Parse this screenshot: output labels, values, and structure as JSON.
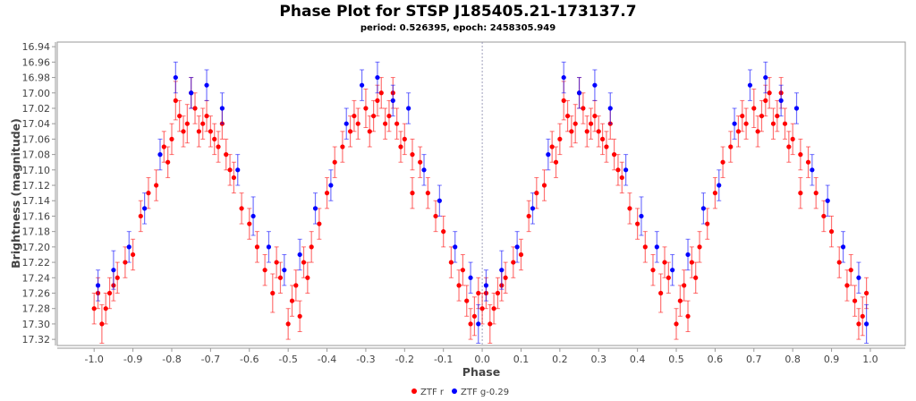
{
  "chart_data": {
    "type": "scatter",
    "title": "Phase Plot for STSP J185405.21-173137.7",
    "subtitle": "period: 0.526395, epoch: 2458305.949",
    "xlabel": "Phase",
    "ylabel": "Brightness (magnitude)",
    "xlim": [
      -1.095,
      1.09
    ],
    "ylim": [
      17.328,
      16.934
    ],
    "y_inverted": true,
    "x_ticks": [
      "-1.0",
      "-0.9",
      "-0.8",
      "-0.7",
      "-0.6",
      "-0.5",
      "-0.4",
      "-0.3",
      "-0.2",
      "-0.1",
      "0.0",
      "0.1",
      "0.2",
      "0.3",
      "0.4",
      "0.5",
      "0.6",
      "0.7",
      "0.8",
      "0.9",
      "1.0"
    ],
    "y_ticks": [
      "16.94",
      "16.96",
      "16.98",
      "17.00",
      "17.02",
      "17.04",
      "17.06",
      "17.08",
      "17.10",
      "17.12",
      "17.14",
      "17.16",
      "17.18",
      "17.20",
      "17.22",
      "17.24",
      "17.26",
      "17.28",
      "17.30",
      "17.32"
    ],
    "grid": false,
    "zero_line": true,
    "legend_position": "bottom-center",
    "point_format": "[phase, magnitude, error]; each point plotted at phase and phase-1",
    "series": [
      {
        "name": "ZTF r",
        "color": "#ff0000",
        "points": [
          [
            0.0,
            17.28,
            0.02
          ],
          [
            0.02,
            17.3,
            0.025
          ],
          [
            0.04,
            17.26,
            0.02
          ],
          [
            0.06,
            17.24,
            0.02
          ],
          [
            0.08,
            17.22,
            0.02
          ],
          [
            0.1,
            17.21,
            0.02
          ],
          [
            0.12,
            17.16,
            0.02
          ],
          [
            0.14,
            17.13,
            0.02
          ],
          [
            0.16,
            17.12,
            0.02
          ],
          [
            0.18,
            17.07,
            0.02
          ],
          [
            0.2,
            17.06,
            0.02
          ],
          [
            0.22,
            17.03,
            0.02
          ],
          [
            0.24,
            17.04,
            0.025
          ],
          [
            0.26,
            17.02,
            0.02
          ],
          [
            0.28,
            17.04,
            0.02
          ],
          [
            0.3,
            17.05,
            0.02
          ],
          [
            0.32,
            17.07,
            0.02
          ],
          [
            0.34,
            17.08,
            0.02
          ],
          [
            0.36,
            17.11,
            0.02
          ],
          [
            0.38,
            17.15,
            0.02
          ],
          [
            0.4,
            17.17,
            0.02
          ],
          [
            0.42,
            17.2,
            0.02
          ],
          [
            0.44,
            17.23,
            0.02
          ],
          [
            0.46,
            17.26,
            0.025
          ],
          [
            0.48,
            17.24,
            0.02
          ],
          [
            0.5,
            17.3,
            0.02
          ],
          [
            0.52,
            17.25,
            0.02
          ],
          [
            0.54,
            17.22,
            0.02
          ],
          [
            0.56,
            17.2,
            0.02
          ],
          [
            0.58,
            17.17,
            0.02
          ],
          [
            0.6,
            17.13,
            0.02
          ],
          [
            0.62,
            17.09,
            0.02
          ],
          [
            0.64,
            17.07,
            0.02
          ],
          [
            0.66,
            17.05,
            0.02
          ],
          [
            0.68,
            17.04,
            0.02
          ],
          [
            0.7,
            17.02,
            0.025
          ],
          [
            0.72,
            17.03,
            0.02
          ],
          [
            0.74,
            17.0,
            0.02
          ],
          [
            0.76,
            17.03,
            0.02
          ],
          [
            0.78,
            17.04,
            0.02
          ],
          [
            0.8,
            17.06,
            0.02
          ],
          [
            0.82,
            17.08,
            0.02
          ],
          [
            0.84,
            17.09,
            0.02
          ],
          [
            0.86,
            17.13,
            0.02
          ],
          [
            0.88,
            17.16,
            0.02
          ],
          [
            0.9,
            17.18,
            0.02
          ],
          [
            0.92,
            17.22,
            0.02
          ],
          [
            0.94,
            17.25,
            0.02
          ],
          [
            0.96,
            17.27,
            0.02
          ],
          [
            0.98,
            17.29,
            0.025
          ],
          [
            0.01,
            17.26,
            0.02
          ],
          [
            0.03,
            17.28,
            0.02
          ],
          [
            0.05,
            17.25,
            0.02
          ],
          [
            0.19,
            17.09,
            0.02
          ],
          [
            0.21,
            17.01,
            0.025
          ],
          [
            0.23,
            17.05,
            0.02
          ],
          [
            0.25,
            17.0,
            0.02
          ],
          [
            0.27,
            17.05,
            0.02
          ],
          [
            0.29,
            17.03,
            0.02
          ],
          [
            0.31,
            17.06,
            0.02
          ],
          [
            0.33,
            17.04,
            0.02
          ],
          [
            0.35,
            17.1,
            0.02
          ],
          [
            0.47,
            17.22,
            0.02
          ],
          [
            0.51,
            17.27,
            0.02
          ],
          [
            0.53,
            17.29,
            0.02
          ],
          [
            0.55,
            17.24,
            0.02
          ],
          [
            0.67,
            17.03,
            0.02
          ],
          [
            0.71,
            17.05,
            0.02
          ],
          [
            0.73,
            17.01,
            0.02
          ],
          [
            0.75,
            17.04,
            0.02
          ],
          [
            0.77,
            17.0,
            0.02
          ],
          [
            0.79,
            17.07,
            0.02
          ],
          [
            0.82,
            17.13,
            0.02
          ],
          [
            0.95,
            17.23,
            0.02
          ],
          [
            0.97,
            17.3,
            0.02
          ],
          [
            0.99,
            17.26,
            0.02
          ]
        ]
      },
      {
        "name": "ZTF g-0.29",
        "color": "#0000ff",
        "points": [
          [
            0.01,
            17.25,
            0.02
          ],
          [
            0.05,
            17.23,
            0.025
          ],
          [
            0.09,
            17.2,
            0.02
          ],
          [
            0.13,
            17.15,
            0.02
          ],
          [
            0.17,
            17.08,
            0.02
          ],
          [
            0.21,
            16.98,
            0.02
          ],
          [
            0.25,
            17.0,
            0.02
          ],
          [
            0.29,
            16.99,
            0.02
          ],
          [
            0.33,
            17.02,
            0.02
          ],
          [
            0.37,
            17.1,
            0.02
          ],
          [
            0.41,
            17.16,
            0.025
          ],
          [
            0.45,
            17.2,
            0.02
          ],
          [
            0.49,
            17.23,
            0.02
          ],
          [
            0.53,
            17.21,
            0.02
          ],
          [
            0.57,
            17.15,
            0.02
          ],
          [
            0.61,
            17.12,
            0.02
          ],
          [
            0.65,
            17.04,
            0.02
          ],
          [
            0.69,
            16.99,
            0.02
          ],
          [
            0.73,
            16.98,
            0.02
          ],
          [
            0.77,
            17.01,
            0.02
          ],
          [
            0.81,
            17.02,
            0.02
          ],
          [
            0.85,
            17.1,
            0.02
          ],
          [
            0.89,
            17.14,
            0.02
          ],
          [
            0.93,
            17.2,
            0.02
          ],
          [
            0.97,
            17.24,
            0.02
          ],
          [
            0.99,
            17.3,
            0.025
          ]
        ]
      }
    ]
  }
}
